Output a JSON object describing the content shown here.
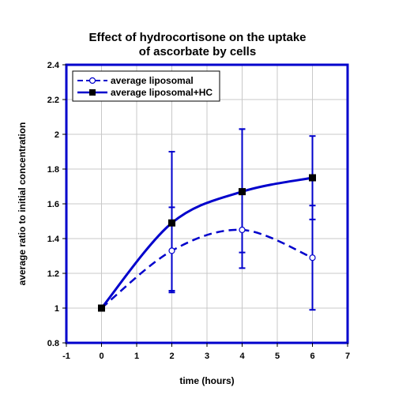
{
  "chart_data": {
    "type": "line",
    "title_lines": [
      "Effect of hydrocortisone on the uptake",
      "of ascorbate by cells"
    ],
    "xlabel": "time (hours)",
    "ylabel": "average ratio to initial concentration",
    "xlim": [
      -1,
      7
    ],
    "ylim": [
      0.8,
      2.4
    ],
    "x_ticks": [
      -1,
      0,
      1,
      2,
      3,
      4,
      5,
      6,
      7
    ],
    "y_ticks": [
      0.8,
      1,
      1.2,
      1.4,
      1.6,
      1.8,
      2,
      2.2,
      2.4
    ],
    "x_tick_labels": [
      "-1",
      "0",
      "1",
      "2",
      "3",
      "4",
      "5",
      "6",
      "7"
    ],
    "y_tick_labels": [
      "0.8",
      "1",
      "1.2",
      "1.4",
      "1.6",
      "1.8",
      "2",
      "2.2",
      "2.4"
    ],
    "grid": true,
    "legend_position": "top-left",
    "series": [
      {
        "name": "average liposomal",
        "line_style": "dashed",
        "marker": "open-circle",
        "color": "#0000cc",
        "x": [
          0,
          2,
          4,
          6
        ],
        "y": [
          1.0,
          1.33,
          1.45,
          1.29
        ],
        "error_low": [
          1.0,
          1.09,
          1.23,
          0.99
        ],
        "error_high": [
          1.0,
          1.58,
          2.03,
          1.59
        ]
      },
      {
        "name": "average liposomal+HC",
        "line_style": "solid",
        "marker": "filled-square",
        "color": "#0000cc",
        "x": [
          0,
          2,
          4,
          6
        ],
        "y": [
          1.0,
          1.49,
          1.67,
          1.75
        ],
        "error_low": [
          1.0,
          1.1,
          1.32,
          1.51
        ],
        "error_high": [
          1.0,
          1.9,
          2.03,
          1.99
        ]
      }
    ]
  }
}
